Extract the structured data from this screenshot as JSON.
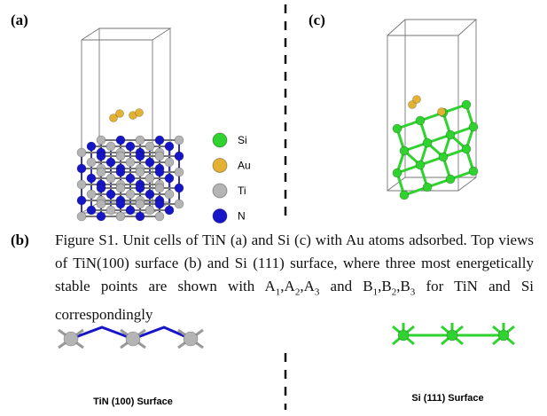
{
  "panels": {
    "a": "(a)",
    "c": "(c)",
    "b": "(b)"
  },
  "legend": [
    {
      "name": "Si",
      "color": "#2fd22f"
    },
    {
      "name": "Au",
      "color": "#e3b232"
    },
    {
      "name": "Ti",
      "color": "#b4b4b4"
    },
    {
      "name": "N",
      "color": "#1616c8"
    }
  ],
  "caption": {
    "runs": [
      {
        "text": "Figure S1. Unit cells of TiN (a) and Si (c) with Au atoms adsorbed. Top views of TiN(100) surface (b) and Si (111) surface, where three most energetically stable points are shown with A",
        "sub": "1"
      },
      {
        "text": ",A",
        "sub": "2"
      },
      {
        "text": ",A",
        "sub": "3"
      },
      {
        "text": " and B",
        "sub": "1"
      },
      {
        "text": ",B",
        "sub": "2"
      },
      {
        "text": ",B",
        "sub": "3"
      },
      {
        "text": " for TiN and Si correspondingly"
      }
    ]
  },
  "surfaces": {
    "tin": "TiN (100) Surface",
    "si": "Si (111) Surface"
  }
}
